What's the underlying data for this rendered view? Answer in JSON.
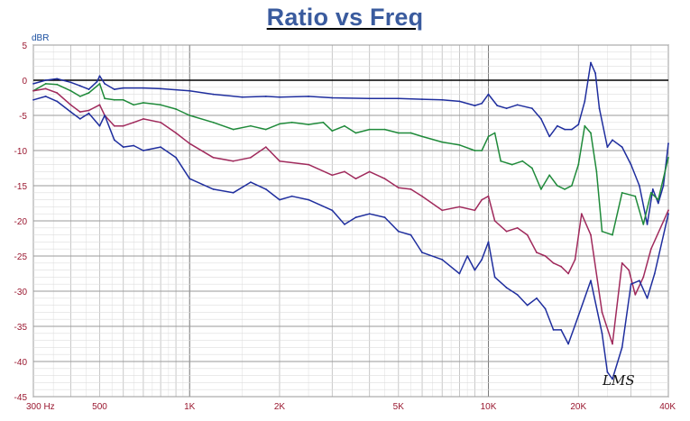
{
  "chart_data": {
    "type": "line",
    "title": "Ratio vs Freq",
    "ylabel": "dBR",
    "xscale": "log",
    "xlim": [
      300,
      40000
    ],
    "ylim": [
      -45,
      5
    ],
    "grid": true,
    "yticks": [
      5,
      0,
      -5,
      -10,
      -15,
      -20,
      -25,
      -30,
      -35,
      -40,
      -45
    ],
    "xtick_labels": [
      {
        "value": 300,
        "label": "300  Hz"
      },
      {
        "value": 500,
        "label": "500"
      },
      {
        "value": 1000,
        "label": "1K"
      },
      {
        "value": 2000,
        "label": "2K"
      },
      {
        "value": 5000,
        "label": "5K"
      },
      {
        "value": 10000,
        "label": "10K"
      },
      {
        "value": 20000,
        "label": "20K"
      },
      {
        "value": 40000,
        "label": "40K"
      }
    ],
    "annotation": "LMS",
    "series": [
      {
        "color": "#1f2e9e",
        "points": [
          [
            300,
            -0.5
          ],
          [
            330,
            0
          ],
          [
            360,
            0.2
          ],
          [
            400,
            -0.3
          ],
          [
            430,
            -0.8
          ],
          [
            460,
            -1.3
          ],
          [
            490,
            -0.2
          ],
          [
            500,
            0.6
          ],
          [
            520,
            -0.5
          ],
          [
            560,
            -1.3
          ],
          [
            600,
            -1.1
          ],
          [
            700,
            -1.1
          ],
          [
            800,
            -1.2
          ],
          [
            1000,
            -1.5
          ],
          [
            1200,
            -2
          ],
          [
            1500,
            -2.4
          ],
          [
            1800,
            -2.3
          ],
          [
            2000,
            -2.4
          ],
          [
            2500,
            -2.3
          ],
          [
            3000,
            -2.5
          ],
          [
            4000,
            -2.6
          ],
          [
            5000,
            -2.6
          ],
          [
            6000,
            -2.7
          ],
          [
            7000,
            -2.8
          ],
          [
            8000,
            -3
          ],
          [
            9000,
            -3.6
          ],
          [
            9500,
            -3.3
          ],
          [
            10000,
            -2
          ],
          [
            10700,
            -3.6
          ],
          [
            11500,
            -4
          ],
          [
            12500,
            -3.5
          ],
          [
            14000,
            -4
          ],
          [
            15000,
            -5.5
          ],
          [
            16000,
            -8
          ],
          [
            17000,
            -6.5
          ],
          [
            18000,
            -7
          ],
          [
            19000,
            -7
          ],
          [
            20000,
            -6.3
          ],
          [
            21000,
            -3
          ],
          [
            22000,
            2.5
          ],
          [
            22800,
            1
          ],
          [
            23500,
            -4
          ],
          [
            25000,
            -9.5
          ],
          [
            26000,
            -8.5
          ],
          [
            28000,
            -9.5
          ],
          [
            30000,
            -12
          ],
          [
            32000,
            -15
          ],
          [
            34000,
            -20.5
          ],
          [
            35500,
            -15.5
          ],
          [
            37000,
            -17.5
          ],
          [
            38500,
            -15
          ],
          [
            40000,
            -9
          ]
        ]
      },
      {
        "color": "#1f8a3a",
        "points": [
          [
            300,
            -1.5
          ],
          [
            330,
            -0.5
          ],
          [
            360,
            -0.6
          ],
          [
            400,
            -1.5
          ],
          [
            430,
            -2.3
          ],
          [
            460,
            -1.8
          ],
          [
            500,
            -0.5
          ],
          [
            520,
            -2.6
          ],
          [
            560,
            -2.8
          ],
          [
            600,
            -2.8
          ],
          [
            650,
            -3.5
          ],
          [
            700,
            -3.2
          ],
          [
            800,
            -3.5
          ],
          [
            900,
            -4.1
          ],
          [
            1000,
            -5
          ],
          [
            1200,
            -6
          ],
          [
            1400,
            -7
          ],
          [
            1600,
            -6.5
          ],
          [
            1800,
            -7
          ],
          [
            2000,
            -6.2
          ],
          [
            2200,
            -6
          ],
          [
            2500,
            -6.3
          ],
          [
            2800,
            -6
          ],
          [
            3000,
            -7.2
          ],
          [
            3300,
            -6.5
          ],
          [
            3600,
            -7.5
          ],
          [
            4000,
            -7
          ],
          [
            4500,
            -7
          ],
          [
            5000,
            -7.5
          ],
          [
            5500,
            -7.5
          ],
          [
            6000,
            -8
          ],
          [
            7000,
            -8.8
          ],
          [
            8000,
            -9.2
          ],
          [
            9000,
            -10
          ],
          [
            9500,
            -10
          ],
          [
            10000,
            -8
          ],
          [
            10500,
            -7.5
          ],
          [
            11000,
            -11.5
          ],
          [
            12000,
            -12
          ],
          [
            13000,
            -11.5
          ],
          [
            14000,
            -12.5
          ],
          [
            15000,
            -15.5
          ],
          [
            16000,
            -13.5
          ],
          [
            17000,
            -15
          ],
          [
            18000,
            -15.5
          ],
          [
            19000,
            -15
          ],
          [
            20000,
            -12
          ],
          [
            21000,
            -6.5
          ],
          [
            22000,
            -7.5
          ],
          [
            23000,
            -13
          ],
          [
            24000,
            -21.5
          ],
          [
            26000,
            -22
          ],
          [
            28000,
            -16
          ],
          [
            31000,
            -16.5
          ],
          [
            33000,
            -20.5
          ],
          [
            35000,
            -16
          ],
          [
            37000,
            -17
          ],
          [
            40000,
            -11
          ]
        ]
      },
      {
        "color": "#a02a5c",
        "points": [
          [
            300,
            -1.5
          ],
          [
            330,
            -1.2
          ],
          [
            360,
            -1.8
          ],
          [
            400,
            -3.5
          ],
          [
            430,
            -4.5
          ],
          [
            460,
            -4.3
          ],
          [
            500,
            -3.5
          ],
          [
            520,
            -5
          ],
          [
            560,
            -6.5
          ],
          [
            600,
            -6.5
          ],
          [
            650,
            -6
          ],
          [
            700,
            -5.5
          ],
          [
            800,
            -6
          ],
          [
            900,
            -7.5
          ],
          [
            1000,
            -9
          ],
          [
            1200,
            -11
          ],
          [
            1400,
            -11.5
          ],
          [
            1600,
            -11
          ],
          [
            1800,
            -9.5
          ],
          [
            2000,
            -11.5
          ],
          [
            2500,
            -12
          ],
          [
            3000,
            -13.5
          ],
          [
            3300,
            -13
          ],
          [
            3600,
            -14
          ],
          [
            4000,
            -13
          ],
          [
            4500,
            -14
          ],
          [
            5000,
            -15.3
          ],
          [
            5500,
            -15.5
          ],
          [
            6000,
            -16.5
          ],
          [
            7000,
            -18.5
          ],
          [
            8000,
            -18
          ],
          [
            9000,
            -18.5
          ],
          [
            9500,
            -17
          ],
          [
            10000,
            -16.5
          ],
          [
            10500,
            -20
          ],
          [
            11500,
            -21.5
          ],
          [
            12500,
            -21
          ],
          [
            13500,
            -22
          ],
          [
            14500,
            -24.5
          ],
          [
            15500,
            -25
          ],
          [
            16500,
            -26
          ],
          [
            17500,
            -26.5
          ],
          [
            18500,
            -27.5
          ],
          [
            19500,
            -25.5
          ],
          [
            20500,
            -19
          ],
          [
            22000,
            -22
          ],
          [
            24000,
            -33
          ],
          [
            26000,
            -37.5
          ],
          [
            28000,
            -26
          ],
          [
            29500,
            -27
          ],
          [
            31000,
            -30.5
          ],
          [
            33000,
            -28
          ],
          [
            35000,
            -24
          ],
          [
            40000,
            -18.5
          ]
        ]
      },
      {
        "color": "#1f2e9e",
        "points": [
          [
            300,
            -2.8
          ],
          [
            330,
            -2.3
          ],
          [
            360,
            -3
          ],
          [
            400,
            -4.5
          ],
          [
            430,
            -5.5
          ],
          [
            460,
            -4.7
          ],
          [
            500,
            -6.5
          ],
          [
            520,
            -5
          ],
          [
            560,
            -8.5
          ],
          [
            600,
            -9.5
          ],
          [
            650,
            -9.3
          ],
          [
            700,
            -10
          ],
          [
            800,
            -9.5
          ],
          [
            900,
            -11
          ],
          [
            1000,
            -14
          ],
          [
            1200,
            -15.5
          ],
          [
            1400,
            -16
          ],
          [
            1600,
            -14.5
          ],
          [
            1800,
            -15.5
          ],
          [
            2000,
            -17
          ],
          [
            2200,
            -16.5
          ],
          [
            2500,
            -17
          ],
          [
            3000,
            -18.5
          ],
          [
            3300,
            -20.5
          ],
          [
            3600,
            -19.5
          ],
          [
            4000,
            -19
          ],
          [
            4500,
            -19.5
          ],
          [
            5000,
            -21.5
          ],
          [
            5500,
            -22
          ],
          [
            6000,
            -24.5
          ],
          [
            7000,
            -25.5
          ],
          [
            8000,
            -27.5
          ],
          [
            8500,
            -25
          ],
          [
            9000,
            -27
          ],
          [
            9500,
            -25.5
          ],
          [
            10000,
            -23
          ],
          [
            10500,
            -28
          ],
          [
            11500,
            -29.5
          ],
          [
            12500,
            -30.5
          ],
          [
            13500,
            -32
          ],
          [
            14500,
            -31
          ],
          [
            15500,
            -32.5
          ],
          [
            16500,
            -35.5
          ],
          [
            17500,
            -35.5
          ],
          [
            18500,
            -37.5
          ],
          [
            20000,
            -33.5
          ],
          [
            22000,
            -28.5
          ],
          [
            24000,
            -36
          ],
          [
            25000,
            -41.5
          ],
          [
            26000,
            -42.5
          ],
          [
            28000,
            -38
          ],
          [
            30000,
            -29
          ],
          [
            32000,
            -28.5
          ],
          [
            34000,
            -31
          ],
          [
            36000,
            -27.5
          ],
          [
            40000,
            -19
          ]
        ]
      }
    ]
  }
}
